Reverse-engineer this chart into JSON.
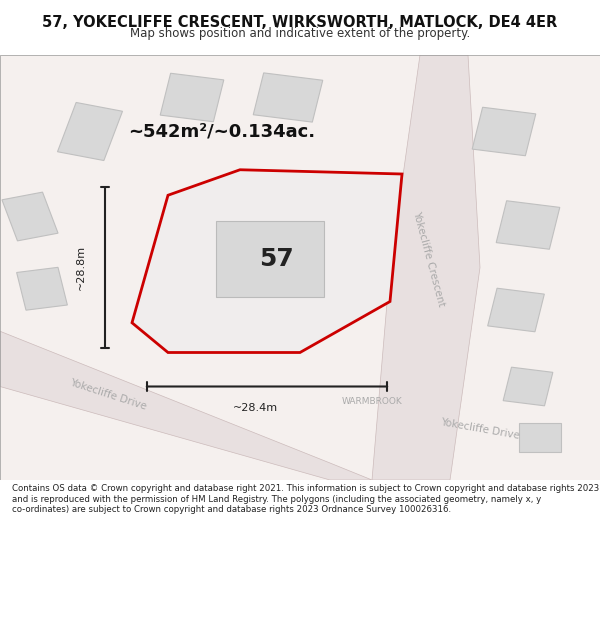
{
  "title_line1": "57, YOKECLIFFE CRESCENT, WIRKSWORTH, MATLOCK, DE4 4ER",
  "title_line2": "Map shows position and indicative extent of the property.",
  "footer_text": "Contains OS data © Crown copyright and database right 2021. This information is subject to Crown copyright and database rights 2023 and is reproduced with the permission of HM Land Registry. The polygons (including the associated geometry, namely x, y co-ordinates) are subject to Crown copyright and database rights 2023 Ordnance Survey 100026316.",
  "area_label": "~542m²/~0.134ac.",
  "number_label": "57",
  "dim_vertical": "~28.8m",
  "dim_horizontal": "~28.4m",
  "street_yokecliffe_crescent": "Yokecliffe Crescent",
  "street_yokecliffe_drive": "Yokecliffe Drive",
  "street_yokecliffe_drive2": "Yokecliffe Drive",
  "street_warmbrook": "WARMBROOK",
  "bg_color": "#f5f0f0",
  "road_color": "#e8e0e0",
  "plot_fill": "#f0f0f0",
  "plot_outline": "#cc0000",
  "building_fill": "#d8d8d8",
  "road_line_color": "#ccbbbb",
  "map_bg": "#ffffff",
  "title_bg": "#ffffff",
  "footer_bg": "#ffffff",
  "dim_line_color": "#222222",
  "road_text_color": "#999999",
  "road_text_color2": "#aaaaaa"
}
